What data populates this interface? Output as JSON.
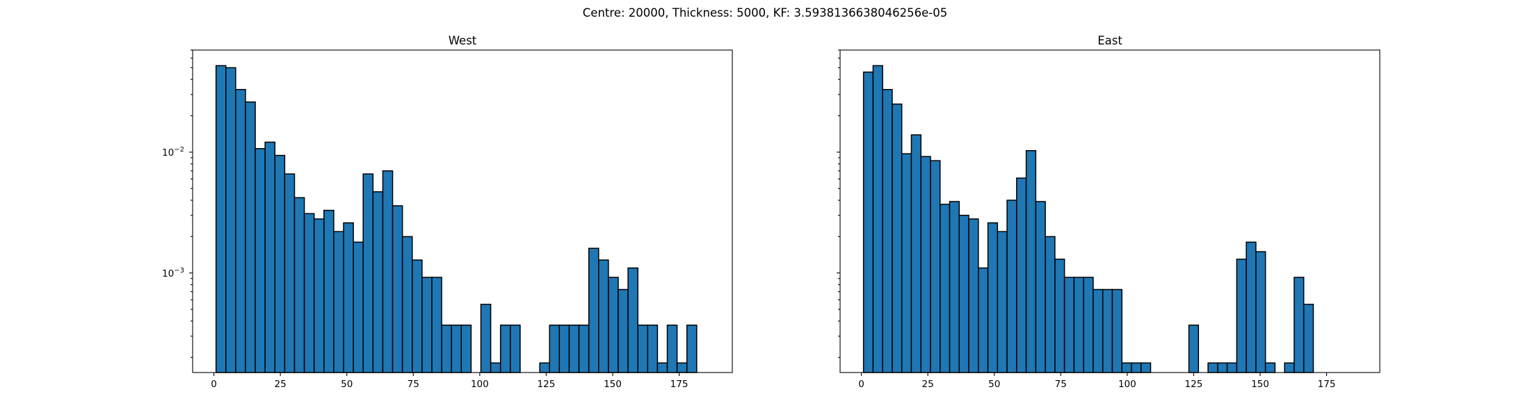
{
  "chart_data": {
    "type": "bar",
    "title": "Centre: 20000, Thickness: 5000, KF: 3.5938136638046256e-05",
    "ylim": [
      0.00015,
      0.07
    ],
    "y_scale": "log",
    "shared_y": true,
    "x_tick_labels": [
      "0",
      "25",
      "50",
      "75",
      "100",
      "125",
      "150",
      "175"
    ],
    "y_tick_labels": [
      {
        "base": "10",
        "exp": "−2"
      },
      {
        "base": "10",
        "exp": "−3"
      }
    ],
    "panels": [
      {
        "title": "West",
        "xlim": [
          -8,
          195
        ],
        "bin_start": 0.8,
        "bin_width": 3.69,
        "values": [
          0.052,
          0.05,
          0.033,
          0.026,
          0.0107,
          0.0121,
          0.0094,
          0.0066,
          0.0042,
          0.0031,
          0.0028,
          0.0033,
          0.0022,
          0.0026,
          0.0018,
          0.0066,
          0.0047,
          0.007,
          0.0036,
          0.002,
          0.00128,
          0.00092,
          0.00092,
          0.00037,
          0.00037,
          0.00037,
          0,
          0.00055,
          0.00018,
          0.00037,
          0.00037,
          0,
          0,
          0.00018,
          0.00037,
          0.00037,
          0.00037,
          0.00037,
          0.0016,
          0.00128,
          0.00092,
          0.00073,
          0.0011,
          0.00037,
          0.00037,
          0.00018,
          0.00037,
          0.00018,
          0.00037
        ]
      },
      {
        "title": "East",
        "xlim": [
          -8,
          195
        ],
        "bin_start": 0.8,
        "bin_width": 3.6,
        "values": [
          0.046,
          0.052,
          0.033,
          0.025,
          0.0097,
          0.0139,
          0.0092,
          0.0085,
          0.0037,
          0.0039,
          0.003,
          0.0028,
          0.0011,
          0.0026,
          0.0022,
          0.004,
          0.0061,
          0.0103,
          0.0039,
          0.002,
          0.0013,
          0.00092,
          0.00092,
          0.00092,
          0.00073,
          0.00073,
          0.00073,
          0.00018,
          0.00018,
          0.00018,
          0,
          0,
          0,
          0,
          0.00037,
          0,
          0.00018,
          0.00018,
          0.00018,
          0.0013,
          0.0018,
          0.0015,
          0.00018,
          0,
          0.00018,
          0.00092,
          0.00055
        ]
      }
    ]
  }
}
